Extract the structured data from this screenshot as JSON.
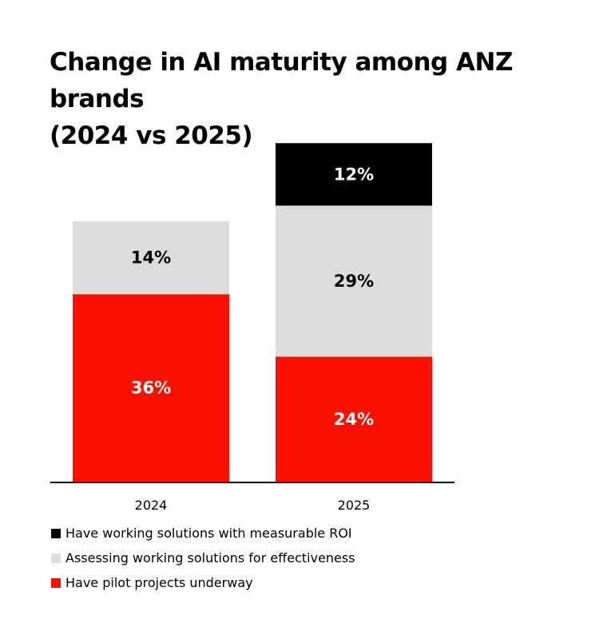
{
  "title_lines": [
    "Change in AI maturity among ANZ brands",
    "(2024 vs 2025)"
  ],
  "colors": {
    "roi": "#000000",
    "assessing": "#dcdcdc",
    "pilot": "#fa0f00",
    "axis": "#000000"
  },
  "chart_data": {
    "type": "bar",
    "stacked": true,
    "title": "Change in AI maturity among ANZ brands (2024 vs 2025)",
    "categories": [
      "2024",
      "2025"
    ],
    "series": [
      {
        "name": "Have pilot projects underway",
        "key": "pilot",
        "values": [
          36,
          24
        ],
        "labels": [
          "36%",
          "24%"
        ],
        "label_color": "#ffffff"
      },
      {
        "name": "Assessing working solutions for effectiveness",
        "key": "assessing",
        "values": [
          14,
          29
        ],
        "labels": [
          "14%",
          "29%"
        ],
        "label_color": "#000000"
      },
      {
        "name": "Have working solutions with measurable ROI",
        "key": "roi",
        "values": [
          0,
          12
        ],
        "labels": [
          "",
          "12%"
        ],
        "label_color": "#ffffff"
      }
    ],
    "ylim": [
      0,
      65
    ],
    "xlabel": "",
    "ylabel": "",
    "grid": false,
    "legend_position": "bottom-left"
  },
  "legend": [
    {
      "label": "Have working solutions with measurable ROI",
      "key": "roi"
    },
    {
      "label": "Assessing working solutions for effectiveness",
      "key": "assessing"
    },
    {
      "label": "Have pilot projects underway",
      "key": "pilot"
    }
  ]
}
